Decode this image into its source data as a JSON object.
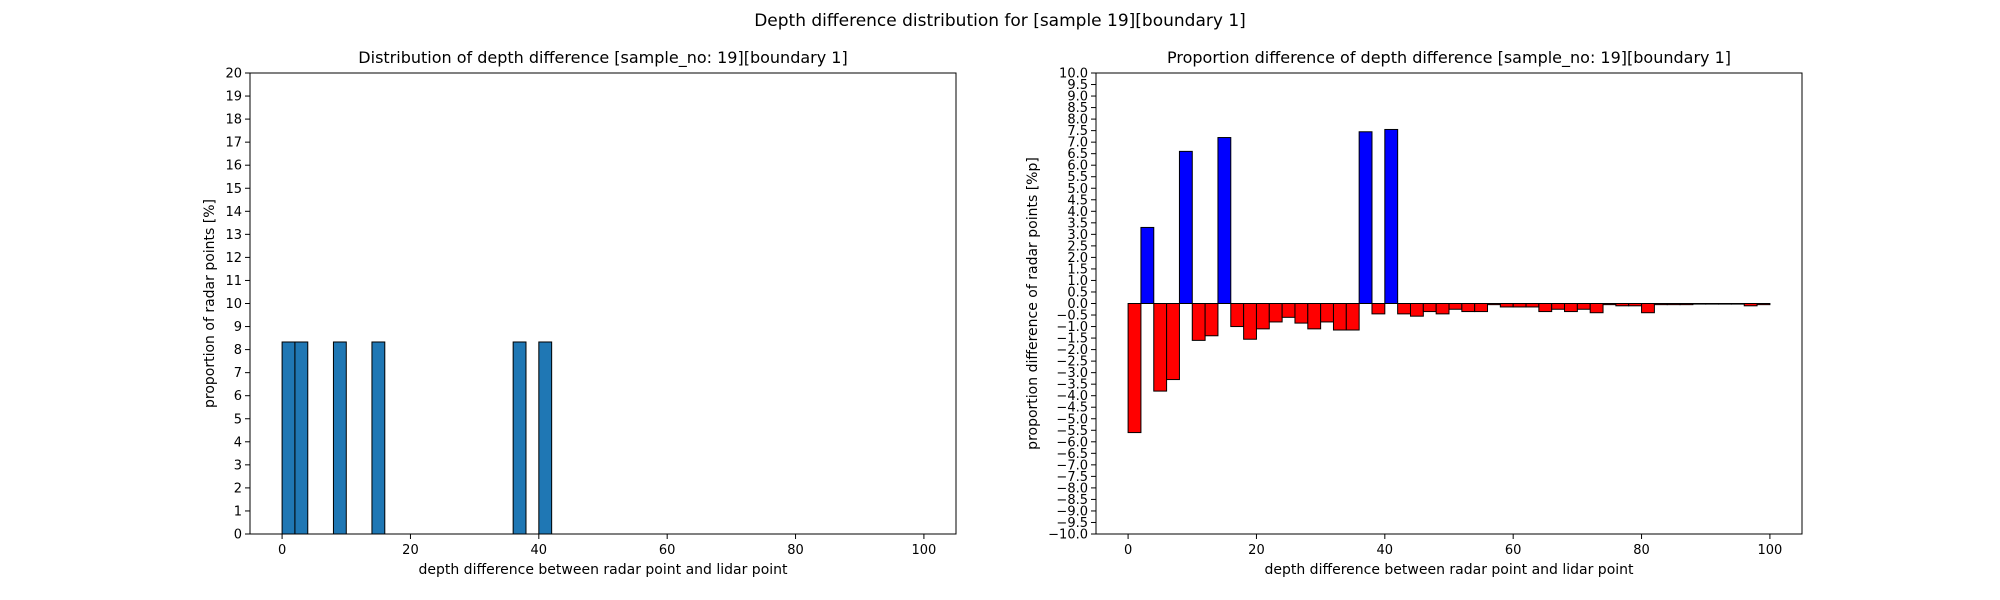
{
  "figure": {
    "suptitle": "Depth difference distribution for [sample 19][boundary 1]"
  },
  "chart_data": [
    {
      "type": "bar",
      "title": "Distribution of depth difference [sample_no: 19][boundary 1]",
      "xlabel": "depth difference between radar point and lidar point",
      "ylabel": "proportion of radar points [%]",
      "xlim": [
        -5,
        105
      ],
      "ylim": [
        0,
        20
      ],
      "xticks": [
        0,
        20,
        40,
        60,
        80,
        100
      ],
      "yticks": [
        0,
        1,
        2,
        3,
        4,
        5,
        6,
        7,
        8,
        9,
        10,
        11,
        12,
        13,
        14,
        15,
        16,
        17,
        18,
        19,
        20
      ],
      "bar_width": 2,
      "bar_color": "#1f77b4",
      "edge_color": "#000000",
      "x": [
        1,
        3,
        9,
        15,
        37,
        41
      ],
      "values": [
        8.33,
        8.33,
        8.33,
        8.33,
        8.33,
        8.33
      ]
    },
    {
      "type": "bar",
      "title": "Proportion difference of depth difference [sample_no: 19][boundary 1]",
      "xlabel": "depth difference between radar point and lidar point",
      "ylabel": "proportion difference of radar points [%p]",
      "xlim": [
        -5,
        105
      ],
      "ylim": [
        -10,
        10
      ],
      "xticks": [
        0,
        20,
        40,
        60,
        80,
        100
      ],
      "yticks": [
        -10.0,
        -9.5,
        -9.0,
        -8.5,
        -8.0,
        -7.5,
        -7.0,
        -6.5,
        -6.0,
        -5.5,
        -5.0,
        -4.5,
        -4.0,
        -3.5,
        -3.0,
        -2.5,
        -2.0,
        -1.5,
        -1.0,
        -0.5,
        0.0,
        0.5,
        1.0,
        1.5,
        2.0,
        2.5,
        3.0,
        3.5,
        4.0,
        4.5,
        5.0,
        5.5,
        6.0,
        6.5,
        7.0,
        7.5,
        8.0,
        8.5,
        9.0,
        9.5,
        10.0
      ],
      "bar_width": 2,
      "positive_color": "#0000ff",
      "negative_color": "#ff0000",
      "edge_color": "#000000",
      "x": [
        1,
        3,
        5,
        7,
        9,
        11,
        13,
        15,
        17,
        19,
        21,
        23,
        25,
        27,
        29,
        31,
        33,
        35,
        37,
        39,
        41,
        43,
        45,
        47,
        49,
        51,
        53,
        55,
        57,
        59,
        61,
        63,
        65,
        67,
        69,
        71,
        73,
        75,
        77,
        79,
        81,
        83,
        85,
        87,
        89,
        91,
        93,
        95,
        97,
        99
      ],
      "values": [
        -5.6,
        3.3,
        -3.8,
        -3.3,
        6.6,
        -1.6,
        -1.4,
        7.2,
        -1.0,
        -1.55,
        -1.1,
        -0.8,
        -0.6,
        -0.85,
        -1.1,
        -0.8,
        -1.15,
        -1.15,
        7.45,
        -0.45,
        7.55,
        -0.45,
        -0.55,
        -0.35,
        -0.45,
        -0.25,
        -0.35,
        -0.35,
        -0.05,
        -0.15,
        -0.15,
        -0.15,
        -0.35,
        -0.25,
        -0.35,
        -0.25,
        -0.4,
        -0.05,
        -0.1,
        -0.1,
        -0.4,
        -0.05,
        -0.05,
        -0.05,
        -0.02,
        -0.02,
        -0.02,
        -0.02,
        -0.1,
        -0.05
      ]
    }
  ]
}
